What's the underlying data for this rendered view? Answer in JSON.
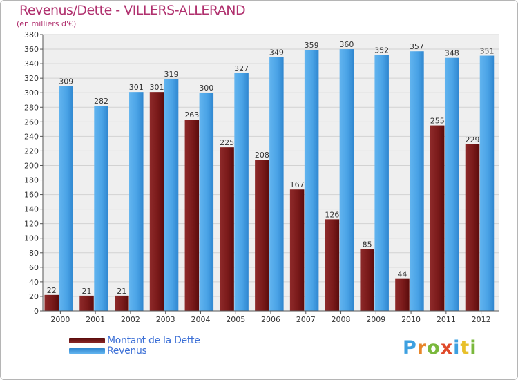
{
  "chart_data": {
    "type": "bar",
    "title": "Revenus/Dette - VILLERS-ALLERAND",
    "subtitle": "(en milliers d'€)",
    "categories": [
      "2000",
      "2001",
      "2002",
      "2003",
      "2004",
      "2005",
      "2006",
      "2007",
      "2008",
      "2009",
      "2010",
      "2011",
      "2012"
    ],
    "series": [
      {
        "name": "Montant de la Dette",
        "color": "#7a1a1a",
        "values": [
          22,
          21,
          21,
          301,
          263,
          225,
          208,
          167,
          126,
          85,
          44,
          255,
          229
        ]
      },
      {
        "name": "Revenus",
        "color": "#4da6e8",
        "values": [
          309,
          282,
          301,
          319,
          300,
          327,
          349,
          359,
          360,
          352,
          357,
          348,
          351
        ]
      }
    ],
    "ylim": [
      0,
      380
    ],
    "yticks": [
      0,
      20,
      40,
      60,
      80,
      100,
      120,
      140,
      160,
      180,
      200,
      220,
      240,
      260,
      280,
      300,
      320,
      340,
      360,
      380
    ],
    "grid": true,
    "legend_position": "bottom-left"
  },
  "brand": {
    "letters": [
      "P",
      "r",
      "o",
      "x",
      "i",
      "t",
      "i"
    ],
    "colors": [
      "#3da0e0",
      "#e8862a",
      "#7ab83c",
      "#e04a2a",
      "#3da0e0",
      "#e8c02a",
      "#7ab83c"
    ]
  }
}
